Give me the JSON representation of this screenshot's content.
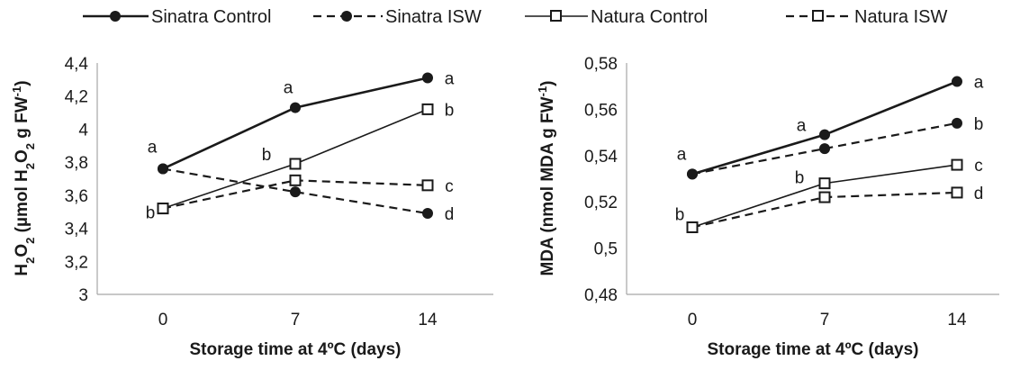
{
  "legend": [
    {
      "name": "Sinatra Control",
      "line": "solid-thick",
      "marker": "filled-circle"
    },
    {
      "name": "Sinatra ISW",
      "line": "dashed",
      "marker": "filled-circle"
    },
    {
      "name": "Natura Control",
      "line": "solid-thin",
      "marker": "open-square"
    },
    {
      "name": "Natura ISW",
      "line": "dashed",
      "marker": "open-square"
    }
  ],
  "colors": {
    "ink": "#1a1a1a",
    "axis": "#a6a6a6",
    "marker_fill_open": "#ffffff"
  },
  "chart_data": [
    {
      "type": "line",
      "title": "",
      "xlabel": "Storage time at 4ºC (days)",
      "ylabel": "H2O2  (µmol H2O2 g FW-1)",
      "categories": [
        "0",
        "7",
        "14"
      ],
      "ylim": [
        3,
        4.4
      ],
      "yticks": [
        "3",
        "3,2",
        "3,4",
        "3,6",
        "3,8",
        "4",
        "4,2",
        "4,4"
      ],
      "grid": false,
      "series": [
        {
          "name": "Sinatra Control",
          "values": [
            3.76,
            4.13,
            4.31
          ],
          "letters": [
            "a",
            "a",
            "a"
          ]
        },
        {
          "name": "Sinatra ISW",
          "values": [
            3.76,
            3.62,
            3.49
          ],
          "letters": [
            "",
            "",
            "d"
          ]
        },
        {
          "name": "Natura Control",
          "values": [
            3.52,
            3.79,
            4.12
          ],
          "letters": [
            "b",
            "b",
            "b"
          ]
        },
        {
          "name": "Natura ISW",
          "values": [
            3.52,
            3.69,
            3.66
          ],
          "letters": [
            "",
            "",
            "c"
          ]
        }
      ]
    },
    {
      "type": "line",
      "title": "",
      "xlabel": "Storage time at 4ºC (days)",
      "ylabel": "MDA (nmol MDA g FW-1)",
      "categories": [
        "0",
        "7",
        "14"
      ],
      "ylim": [
        0.48,
        0.58
      ],
      "yticks": [
        "0,48",
        "0,5",
        "0,52",
        "0,54",
        "0,56",
        "0,58"
      ],
      "grid": false,
      "series": [
        {
          "name": "Sinatra Control",
          "values": [
            0.532,
            0.549,
            0.572
          ],
          "letters": [
            "a",
            "a",
            "a"
          ]
        },
        {
          "name": "Sinatra ISW",
          "values": [
            0.532,
            0.543,
            0.554
          ],
          "letters": [
            "",
            "",
            "b"
          ]
        },
        {
          "name": "Natura Control",
          "values": [
            0.509,
            0.528,
            0.536
          ],
          "letters": [
            "b",
            "b",
            "c"
          ]
        },
        {
          "name": "Natura ISW",
          "values": [
            0.509,
            0.522,
            0.524
          ],
          "letters": [
            "",
            "",
            "d"
          ]
        }
      ]
    }
  ]
}
